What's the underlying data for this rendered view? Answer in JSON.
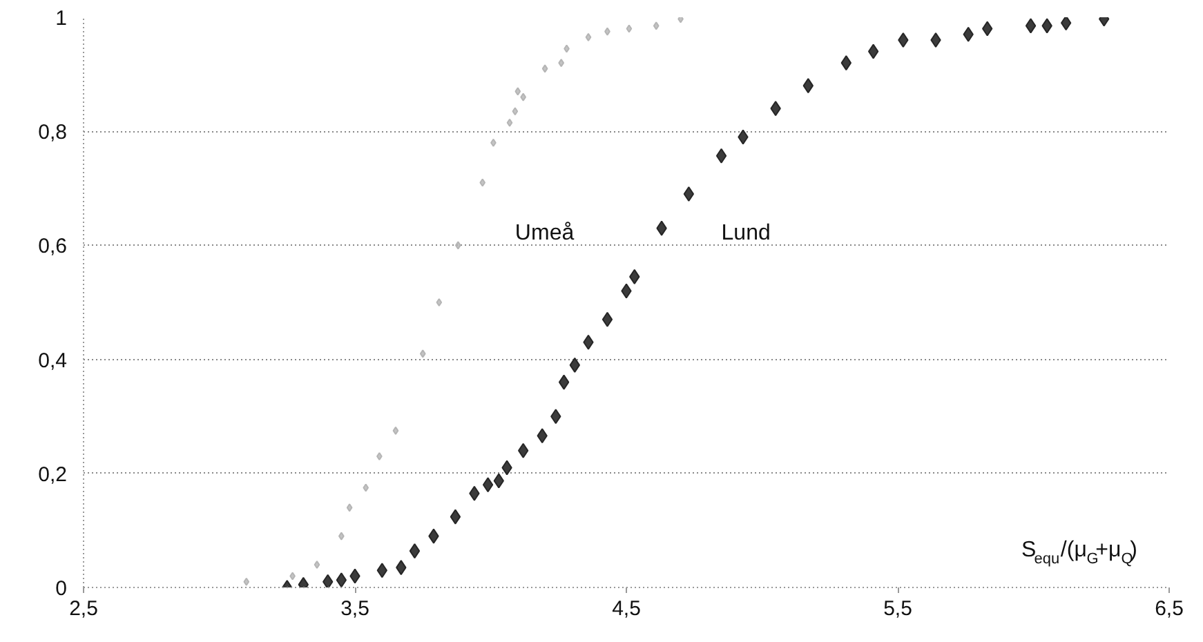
{
  "chart_data": {
    "type": "scatter",
    "xlabel": "S$_{equ}$/(μ$_{G}$+μ$_{Q}$)",
    "xlim": [
      2.5,
      6.5
    ],
    "ylim": [
      0,
      1
    ],
    "xticks": [
      {
        "value": 2.5,
        "label": "2,5"
      },
      {
        "value": 3.5,
        "label": "3,5"
      },
      {
        "value": 4.5,
        "label": "4,5"
      },
      {
        "value": 5.5,
        "label": "5,5"
      },
      {
        "value": 6.5,
        "label": "6,5"
      }
    ],
    "yticks": [
      0,
      {
        "value": 0.2,
        "label": "0,2"
      },
      {
        "value": 0.4,
        "label": "0,4"
      },
      {
        "value": 0.6,
        "label": "0,6"
      },
      {
        "value": 0.8,
        "label": "0,8"
      },
      1
    ],
    "grid": "y",
    "marker": "diamond",
    "series": [
      {
        "name": "Umeå",
        "color": "#b5b5b5",
        "x": [
          3.1,
          3.27,
          3.36,
          3.45,
          3.48,
          3.54,
          3.59,
          3.65,
          3.75,
          3.81,
          3.88,
          3.97,
          4.01,
          4.07,
          4.09,
          4.1,
          4.12,
          4.2,
          4.26,
          4.28,
          4.36,
          4.43,
          4.51,
          4.61,
          4.7
        ],
        "values": [
          0.01,
          0.02,
          0.04,
          0.09,
          0.14,
          0.175,
          0.23,
          0.275,
          0.41,
          0.5,
          0.6,
          0.71,
          0.78,
          0.815,
          0.835,
          0.87,
          0.86,
          0.91,
          0.92,
          0.945,
          0.965,
          0.975,
          0.98,
          0.985,
          0.997
        ]
      },
      {
        "name": "Lund",
        "color": "#262626",
        "x": [
          3.25,
          3.31,
          3.4,
          3.45,
          3.5,
          3.6,
          3.67,
          3.72,
          3.79,
          3.87,
          3.94,
          3.99,
          4.03,
          4.06,
          4.12,
          4.19,
          4.24,
          4.27,
          4.31,
          4.36,
          4.43,
          4.5,
          4.53,
          4.63,
          4.73,
          4.85,
          4.93,
          5.05,
          5.17,
          5.31,
          5.41,
          5.52,
          5.64,
          5.76,
          5.83,
          5.99,
          6.05,
          6.12,
          6.26
        ],
        "values": [
          0,
          0.005,
          0.01,
          0.013,
          0.02,
          0.03,
          0.035,
          0.064,
          0.09,
          0.124,
          0.165,
          0.18,
          0.187,
          0.21,
          0.24,
          0.266,
          0.3,
          0.36,
          0.39,
          0.43,
          0.47,
          0.52,
          0.545,
          0.63,
          0.69,
          0.757,
          0.79,
          0.84,
          0.88,
          0.92,
          0.94,
          0.96,
          0.96,
          0.97,
          0.98,
          0.985,
          0.985,
          0.99,
          0.997
        ]
      }
    ]
  }
}
